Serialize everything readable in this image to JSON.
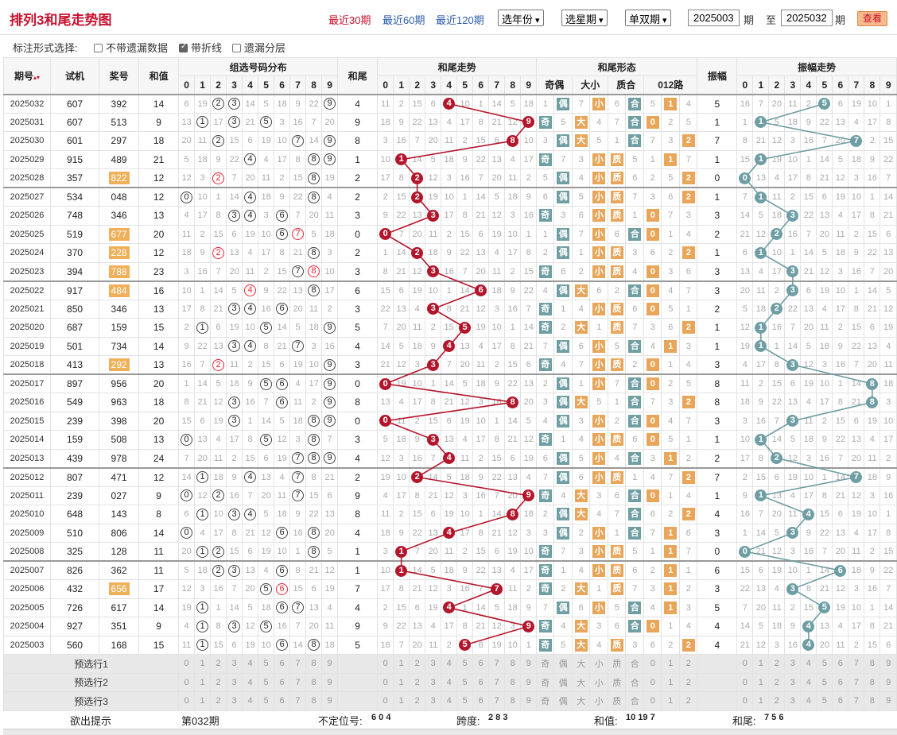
{
  "title": "排列3和尾走势图",
  "links": [
    "最近30期",
    "最近60期",
    "最近120期"
  ],
  "selects": [
    "选年份",
    "选星期",
    "单双期"
  ],
  "period_from": "2025003",
  "period_to": "2025032",
  "label_qi": "期",
  "label_to": "至",
  "query": "查看",
  "options": {
    "label": "标注形式选择:",
    "items": [
      {
        "text": "不带遗漏数据",
        "checked": false
      },
      {
        "text": "带折线",
        "checked": true
      },
      {
        "text": "遗漏分层",
        "checked": false
      }
    ]
  },
  "headers": {
    "issue": "期号",
    "tj": "试机",
    "jh": "奖号",
    "sum": "和值",
    "dist": "组选号码分布",
    "tail": "和尾",
    "trend": "和尾走势",
    "form": "和尾形态",
    "amp": "振幅",
    "ampTrend": "振幅走势",
    "oe": "奇偶",
    "bs": "大小",
    "pc": "质合",
    "r012": "012路"
  },
  "digits": [
    "0",
    "1",
    "2",
    "3",
    "4",
    "5",
    "6",
    "7",
    "8",
    "9"
  ],
  "rows": [
    [
      "2025032",
      "607",
      "392",
      "14",
      "4",
      "5"
    ],
    [
      "2025031",
      "607",
      "513",
      "9",
      "9",
      "1"
    ],
    [
      "2025030",
      "601",
      "297",
      "18",
      "8",
      "7"
    ],
    [
      "2025029",
      "915",
      "489",
      "21",
      "1",
      "1"
    ],
    [
      "2025028",
      "357",
      "822",
      "12",
      "2",
      "0"
    ],
    [
      "2025027",
      "534",
      "048",
      "12",
      "2",
      "1"
    ],
    [
      "2025026",
      "748",
      "346",
      "13",
      "3",
      "3"
    ],
    [
      "2025025",
      "519",
      "677",
      "20",
      "0",
      "2"
    ],
    [
      "2025024",
      "370",
      "228",
      "12",
      "2",
      "1"
    ],
    [
      "2025023",
      "394",
      "788",
      "23",
      "3",
      "3"
    ],
    [
      "2025022",
      "917",
      "484",
      "16",
      "6",
      "3"
    ],
    [
      "2025021",
      "850",
      "346",
      "13",
      "3",
      "2"
    ],
    [
      "2025020",
      "687",
      "159",
      "15",
      "5",
      "1"
    ],
    [
      "2025019",
      "501",
      "734",
      "14",
      "4",
      "1"
    ],
    [
      "2025018",
      "413",
      "292",
      "13",
      "3",
      "3"
    ],
    [
      "2025017",
      "897",
      "956",
      "20",
      "0",
      "8"
    ],
    [
      "2025016",
      "549",
      "963",
      "18",
      "8",
      "8"
    ],
    [
      "2025015",
      "239",
      "398",
      "20",
      "0",
      "3"
    ],
    [
      "2025014",
      "159",
      "508",
      "13",
      "3",
      "1"
    ],
    [
      "2025013",
      "439",
      "978",
      "24",
      "4",
      "2"
    ],
    [
      "2025012",
      "807",
      "471",
      "12",
      "2",
      "7"
    ],
    [
      "2025011",
      "239",
      "027",
      "9",
      "9",
      "1"
    ],
    [
      "2025010",
      "648",
      "143",
      "8",
      "8",
      "4"
    ],
    [
      "2025009",
      "510",
      "806",
      "14",
      "4",
      "3"
    ],
    [
      "2025008",
      "325",
      "128",
      "11",
      "1",
      "0"
    ],
    [
      "2025007",
      "826",
      "362",
      "11",
      "1",
      "6"
    ],
    [
      "2025006",
      "432",
      "656",
      "17",
      "7",
      "3"
    ],
    [
      "2025005",
      "726",
      "617",
      "14",
      "4",
      "5"
    ],
    [
      "2025004",
      "927",
      "351",
      "9",
      "9",
      "4"
    ],
    [
      "2025003",
      "560",
      "168",
      "15",
      "5",
      "4"
    ]
  ],
  "pre_rows": [
    "预选行1",
    "预选行2",
    "预选行3"
  ],
  "form_pre": [
    "奇",
    "偶",
    "大",
    "小",
    "质",
    "合",
    "0",
    "1",
    "2"
  ],
  "hint": {
    "label": "欲出提示",
    "issue": "第032期",
    "h1": "不定位号:",
    "v1": "6 0 4",
    "h2": "跨度:",
    "v2": "2 8 3",
    "h3": "和值:",
    "v3": "10 19 7",
    "h4": "和尾:",
    "v4": "7 5 6"
  },
  "colors": {
    "red": "#b4152b",
    "teal": "#6e9ea3",
    "orange": "#e8a65a",
    "title": "#c8102e"
  },
  "chart_data": {
    "type": "line",
    "x": [
      "2025032",
      "2025031",
      "2025030",
      "2025029",
      "2025028",
      "2025027",
      "2025026",
      "2025025",
      "2025024",
      "2025023",
      "2025022",
      "2025021",
      "2025020",
      "2025019",
      "2025018",
      "2025017",
      "2025016",
      "2025015",
      "2025014",
      "2025013",
      "2025012",
      "2025011",
      "2025010",
      "2025009",
      "2025008",
      "2025007",
      "2025006",
      "2025005",
      "2025004",
      "2025003"
    ],
    "series": [
      {
        "name": "和尾走势",
        "values": [
          4,
          9,
          8,
          1,
          2,
          2,
          3,
          0,
          2,
          3,
          6,
          3,
          5,
          4,
          3,
          0,
          8,
          0,
          3,
          4,
          2,
          9,
          8,
          4,
          1,
          1,
          7,
          4,
          9,
          5
        ]
      },
      {
        "name": "振幅走势",
        "values": [
          5,
          1,
          7,
          1,
          0,
          1,
          3,
          2,
          1,
          3,
          3,
          2,
          1,
          1,
          3,
          8,
          8,
          3,
          1,
          2,
          7,
          1,
          4,
          3,
          0,
          6,
          3,
          5,
          4,
          4
        ]
      }
    ]
  }
}
